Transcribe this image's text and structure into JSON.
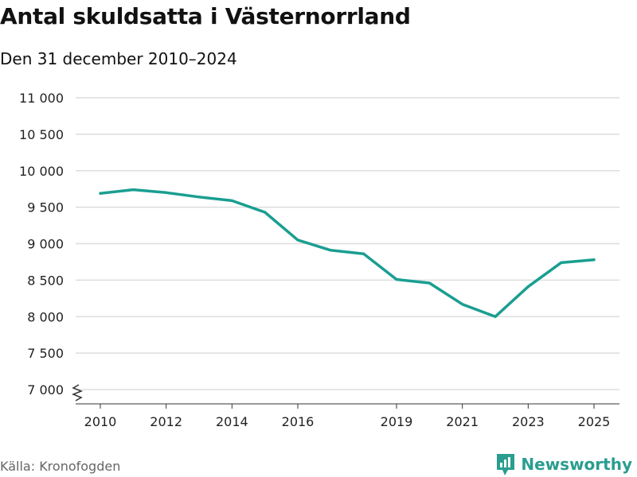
{
  "header": {
    "title": "Antal skuldsatta i Västernorrland",
    "subtitle": "Den 31 december 2010–2024"
  },
  "footer": {
    "source": "Källa: Kronofogden",
    "brand": "Newsworthy"
  },
  "colors": {
    "line": "#1a9e91",
    "grid": "#dddddd",
    "axis": "#333333",
    "brand": "#2a9d8f"
  },
  "chart_data": {
    "type": "line",
    "title": "Antal skuldsatta i Västernorrland",
    "subtitle": "Den 31 december 2010–2024",
    "xlabel": "",
    "ylabel": "",
    "x": [
      2010,
      2011,
      2012,
      2013,
      2014,
      2015,
      2016,
      2017,
      2018,
      2019,
      2020,
      2021,
      2022,
      2023,
      2024,
      2025
    ],
    "series": [
      {
        "name": "Antal skuldsatta",
        "values": [
          9690,
          9740,
          9700,
          9640,
          9590,
          9430,
          9050,
          8910,
          8860,
          8510,
          8460,
          8170,
          8000,
          8410,
          8740,
          8780
        ]
      }
    ],
    "ylim": [
      6900,
      11000
    ],
    "y_ticks": [
      7000,
      7500,
      8000,
      8500,
      9000,
      9500,
      10000,
      10500,
      11000
    ],
    "y_tick_labels": [
      "7 000",
      "7 500",
      "8 000",
      "8 500",
      "9 000",
      "9 500",
      "10 000",
      "10 500",
      "11 000"
    ],
    "x_ticks": [
      2010,
      2012,
      2014,
      2016,
      2019,
      2021,
      2023,
      2025
    ],
    "x_tick_labels": [
      "2010",
      "2012",
      "2014",
      "2016",
      "2019",
      "2021",
      "2023",
      "2025"
    ],
    "axis_break": true,
    "grid": true,
    "legend": "none"
  }
}
